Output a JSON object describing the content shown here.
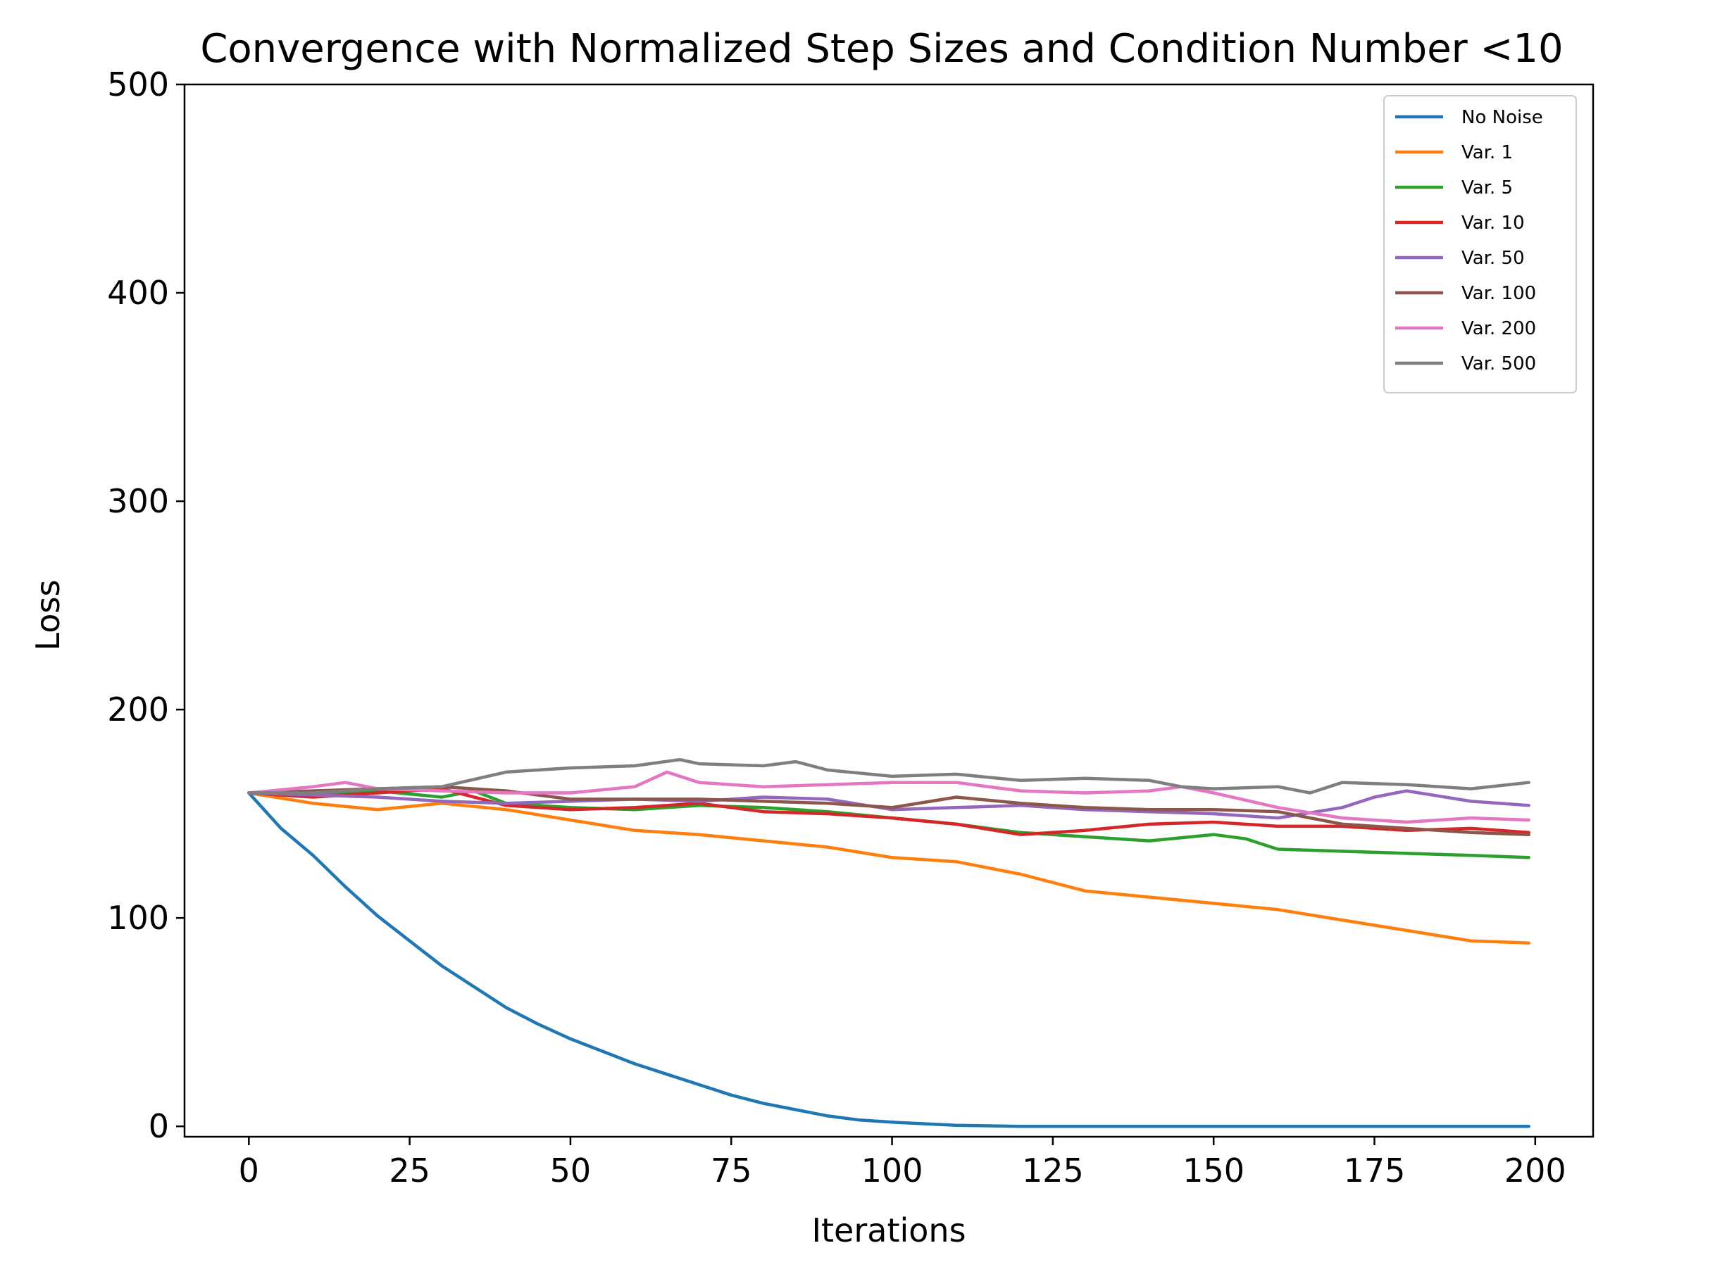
{
  "chart_data": {
    "type": "line",
    "title": "Convergence with Normalized Step Sizes and Condition Number <10",
    "xlabel": "Iterations",
    "ylabel": "Loss",
    "xlim": [
      -10,
      209
    ],
    "ylim": [
      -5,
      500
    ],
    "xticks": [
      0,
      25,
      50,
      75,
      100,
      125,
      150,
      175,
      200
    ],
    "yticks": [
      0,
      100,
      200,
      300,
      400,
      500
    ],
    "grid": false,
    "legend_position": "top-right",
    "series": [
      {
        "name": "No Noise",
        "color": "#1f77b4",
        "x": [
          0,
          5,
          10,
          15,
          20,
          25,
          30,
          35,
          40,
          45,
          50,
          55,
          60,
          65,
          70,
          75,
          80,
          85,
          90,
          95,
          100,
          110,
          120,
          130,
          140,
          150,
          160,
          170,
          180,
          190,
          199
        ],
        "y": [
          160,
          143,
          130,
          115,
          101,
          89,
          77,
          67,
          57,
          49,
          42,
          36,
          30,
          25,
          20,
          15,
          11,
          8,
          5,
          3,
          2,
          0.5,
          0,
          0,
          0,
          0,
          0,
          0,
          0,
          0,
          0
        ]
      },
      {
        "name": "Var. 1",
        "color": "#ff7f0e",
        "x": [
          0,
          10,
          20,
          30,
          40,
          50,
          60,
          70,
          80,
          90,
          100,
          110,
          120,
          125,
          130,
          140,
          150,
          160,
          170,
          180,
          190,
          199
        ],
        "y": [
          160,
          155,
          152,
          155,
          152,
          147,
          142,
          140,
          137,
          134,
          129,
          127,
          121,
          117,
          113,
          110,
          107,
          104,
          99,
          94,
          89,
          88
        ]
      },
      {
        "name": "Var. 5",
        "color": "#2ca02c",
        "x": [
          0,
          10,
          20,
          30,
          35,
          40,
          50,
          60,
          70,
          80,
          90,
          100,
          110,
          120,
          130,
          140,
          150,
          155,
          160,
          170,
          180,
          190,
          199
        ],
        "y": [
          160,
          159,
          161,
          158,
          161,
          155,
          153,
          152,
          154,
          153,
          151,
          148,
          145,
          141,
          139,
          137,
          140,
          138,
          133,
          132,
          131,
          130,
          129
        ]
      },
      {
        "name": "Var. 10",
        "color": "#d62728",
        "x": [
          0,
          10,
          20,
          30,
          40,
          50,
          60,
          70,
          80,
          90,
          100,
          110,
          120,
          130,
          140,
          150,
          160,
          170,
          180,
          190,
          199
        ],
        "y": [
          160,
          158,
          160,
          162,
          154,
          152,
          153,
          155,
          151,
          150,
          148,
          145,
          140,
          142,
          145,
          146,
          144,
          144,
          142,
          143,
          141
        ]
      },
      {
        "name": "Var. 50",
        "color": "#9467bd",
        "x": [
          0,
          10,
          20,
          30,
          40,
          50,
          60,
          70,
          80,
          90,
          100,
          110,
          120,
          130,
          140,
          150,
          160,
          170,
          175,
          180,
          190,
          199
        ],
        "y": [
          160,
          159,
          158,
          156,
          155,
          156,
          157,
          156,
          158,
          157,
          152,
          153,
          154,
          152,
          151,
          150,
          148,
          153,
          158,
          161,
          156,
          154
        ]
      },
      {
        "name": "Var. 100",
        "color": "#8c564b",
        "x": [
          0,
          10,
          20,
          30,
          40,
          50,
          60,
          70,
          80,
          90,
          100,
          110,
          120,
          130,
          140,
          150,
          160,
          170,
          180,
          190,
          199
        ],
        "y": [
          160,
          161,
          162,
          163,
          161,
          157,
          157,
          157,
          156,
          155,
          153,
          158,
          155,
          153,
          152,
          152,
          151,
          145,
          143,
          141,
          140
        ]
      },
      {
        "name": "Var. 200",
        "color": "#e377c2",
        "x": [
          0,
          10,
          15,
          20,
          30,
          40,
          50,
          60,
          65,
          70,
          80,
          90,
          100,
          110,
          120,
          130,
          140,
          145,
          150,
          160,
          170,
          180,
          190,
          199
        ],
        "y": [
          160,
          163,
          165,
          162,
          161,
          160,
          160,
          163,
          170,
          165,
          163,
          164,
          165,
          165,
          161,
          160,
          161,
          163,
          160,
          153,
          148,
          146,
          148,
          147
        ]
      },
      {
        "name": "Var. 500",
        "color": "#7f7f7f",
        "x": [
          0,
          10,
          20,
          30,
          40,
          50,
          60,
          67,
          70,
          80,
          85,
          90,
          100,
          110,
          120,
          130,
          140,
          145,
          150,
          160,
          165,
          170,
          180,
          190,
          199
        ],
        "y": [
          160,
          160,
          162,
          163,
          170,
          172,
          173,
          176,
          174,
          173,
          175,
          171,
          168,
          169,
          166,
          167,
          166,
          163,
          162,
          163,
          160,
          165,
          164,
          162,
          165
        ]
      }
    ]
  }
}
